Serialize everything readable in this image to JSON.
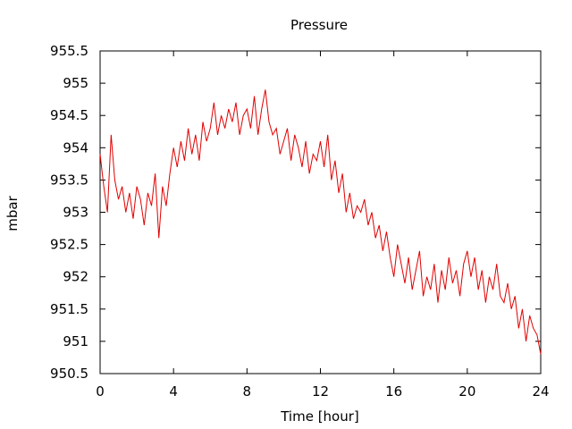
{
  "chart_data": {
    "type": "line",
    "title": "Pressure",
    "xlabel": "Time [hour]",
    "ylabel": "mbar",
    "xlim": [
      0,
      24
    ],
    "ylim": [
      950.5,
      955.5
    ],
    "x_ticks": [
      "0",
      "4",
      "8",
      "12",
      "16",
      "20",
      "24"
    ],
    "y_ticks": [
      "950.5",
      "951",
      "951.5",
      "952",
      "952.5",
      "953",
      "953.5",
      "954",
      "954.5",
      "955",
      "955.5"
    ],
    "grid": false,
    "legend": "none",
    "series": [
      {
        "color": "#e00000",
        "x": [
          0,
          0.2,
          0.4,
          0.6,
          0.8,
          1,
          1.2,
          1.4,
          1.6,
          1.8,
          2,
          2.2,
          2.4,
          2.6,
          2.8,
          3,
          3.2,
          3.4,
          3.6,
          3.8,
          4,
          4.2,
          4.4,
          4.6,
          4.8,
          5,
          5.2,
          5.4,
          5.6,
          5.8,
          6,
          6.2,
          6.4,
          6.6,
          6.8,
          7,
          7.2,
          7.4,
          7.6,
          7.8,
          8,
          8.2,
          8.4,
          8.6,
          8.8,
          9,
          9.2,
          9.4,
          9.6,
          9.8,
          10,
          10.2,
          10.4,
          10.6,
          10.8,
          11,
          11.2,
          11.4,
          11.6,
          11.8,
          12,
          12.2,
          12.4,
          12.6,
          12.8,
          13,
          13.2,
          13.4,
          13.6,
          13.8,
          14,
          14.2,
          14.4,
          14.6,
          14.8,
          15,
          15.2,
          15.4,
          15.6,
          15.8,
          16,
          16.2,
          16.4,
          16.6,
          16.8,
          17,
          17.2,
          17.4,
          17.6,
          17.8,
          18,
          18.2,
          18.4,
          18.6,
          18.8,
          19,
          19.2,
          19.4,
          19.6,
          19.8,
          20,
          20.2,
          20.4,
          20.6,
          20.8,
          21,
          21.2,
          21.4,
          21.6,
          21.8,
          22,
          22.2,
          22.4,
          22.6,
          22.8,
          23,
          23.2,
          23.4,
          23.6,
          23.8,
          24
        ],
        "values": [
          953.9,
          953.4,
          953.0,
          954.2,
          953.5,
          953.2,
          953.4,
          953.0,
          953.3,
          952.9,
          953.4,
          953.2,
          952.8,
          953.3,
          953.1,
          953.6,
          952.6,
          953.4,
          953.1,
          953.6,
          954.0,
          953.7,
          954.1,
          953.8,
          954.3,
          953.9,
          954.2,
          953.8,
          954.4,
          954.1,
          954.3,
          954.7,
          954.2,
          954.5,
          954.3,
          954.6,
          954.4,
          954.7,
          954.2,
          954.5,
          954.6,
          954.3,
          954.8,
          954.2,
          954.6,
          954.9,
          954.4,
          954.2,
          954.3,
          953.9,
          954.1,
          954.3,
          953.8,
          954.2,
          954.0,
          953.7,
          954.1,
          953.6,
          953.9,
          953.8,
          954.1,
          953.7,
          954.2,
          953.5,
          953.8,
          953.3,
          953.6,
          953.0,
          953.3,
          952.9,
          953.1,
          953.0,
          953.2,
          952.8,
          953.0,
          952.6,
          952.8,
          952.4,
          952.7,
          952.3,
          952.0,
          952.5,
          952.2,
          951.9,
          952.3,
          951.8,
          952.1,
          952.4,
          951.7,
          952.0,
          951.8,
          952.2,
          951.6,
          952.1,
          951.8,
          952.3,
          951.9,
          952.1,
          951.7,
          952.2,
          952.4,
          952.0,
          952.3,
          951.8,
          952.1,
          951.6,
          952.0,
          951.8,
          952.2,
          951.7,
          951.6,
          951.9,
          951.5,
          951.7,
          951.2,
          951.5,
          951.0,
          951.4,
          951.2,
          951.1,
          950.8
        ]
      }
    ]
  }
}
